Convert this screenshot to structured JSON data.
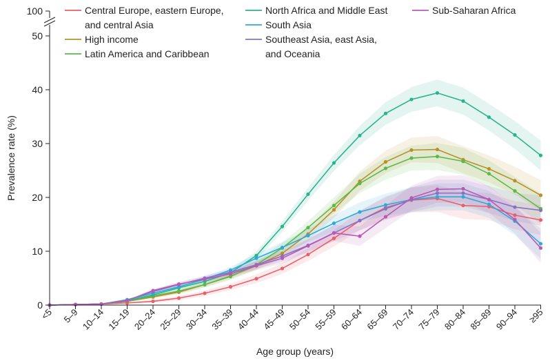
{
  "chart_data": {
    "type": "line",
    "xlabel": "Age group (years)",
    "ylabel": "Prevalence rate (%)",
    "ylim": [
      0,
      50
    ],
    "y_ticks": [
      "0",
      "10",
      "20",
      "30",
      "40",
      "50"
    ],
    "y_break_label": "100",
    "grid": false,
    "legend_position": "top",
    "categories": [
      "<5",
      "5–9",
      "10–14",
      "15–19",
      "20–24",
      "25–29",
      "30–34",
      "35–39",
      "40–44",
      "45–49",
      "50–54",
      "55–59",
      "60–64",
      "65–69",
      "70–74",
      "75–79",
      "80–84",
      "85–89",
      "90–94",
      "≥95"
    ],
    "series": [
      {
        "name": "Central Europe, eastern Europe, and central Asia",
        "color": "#e8606a",
        "values": [
          0,
          0.1,
          0.2,
          0.4,
          0.7,
          1.3,
          2.2,
          3.4,
          4.9,
          6.8,
          9.4,
          12.4,
          15.7,
          18.1,
          19.5,
          19.8,
          18.5,
          18.3,
          16.7,
          15.8
        ]
      },
      {
        "name": "High income",
        "color": "#b8902a",
        "values": [
          0,
          0.1,
          0.2,
          0.7,
          1.5,
          2.4,
          3.8,
          5.4,
          7.3,
          9.6,
          13.2,
          17.7,
          23.0,
          26.6,
          28.8,
          28.9,
          27.0,
          25.3,
          23.1,
          20.4
        ]
      },
      {
        "name": "Latin America and Caribbean",
        "color": "#5cb84a",
        "values": [
          0,
          0.1,
          0.2,
          0.7,
          1.7,
          2.6,
          3.8,
          5.3,
          7.5,
          10.6,
          14.4,
          18.5,
          22.6,
          25.4,
          27.3,
          27.6,
          26.7,
          24.4,
          21.2,
          17.9
        ]
      },
      {
        "name": "North Africa and Middle East",
        "color": "#2bb38f",
        "values": [
          0,
          0.1,
          0.2,
          0.8,
          1.9,
          3.2,
          4.4,
          6.0,
          9.2,
          14.6,
          20.6,
          26.4,
          31.5,
          35.6,
          38.2,
          39.4,
          37.9,
          34.9,
          31.6,
          27.8
        ]
      },
      {
        "name": "South Asia",
        "color": "#2eaad8",
        "values": [
          0,
          0.1,
          0.2,
          1.0,
          2.2,
          3.4,
          4.8,
          6.5,
          8.7,
          10.7,
          12.9,
          15.2,
          17.3,
          18.6,
          19.6,
          20.1,
          20.1,
          18.7,
          15.6,
          11.4
        ]
      },
      {
        "name": "Southeast Asia, east Asia, and Oceania",
        "color": "#8472c4",
        "values": [
          0,
          0.1,
          0.2,
          0.9,
          2.5,
          3.8,
          5.0,
          6.1,
          7.5,
          9.1,
          11.1,
          13.4,
          15.7,
          17.9,
          19.6,
          20.8,
          20.8,
          19.6,
          18.2,
          17.6
        ]
      },
      {
        "name": "Sub-Saharan Africa",
        "color": "#b85ab4",
        "values": [
          0,
          0.1,
          0.2,
          0.8,
          2.7,
          3.9,
          4.8,
          5.8,
          7.3,
          8.7,
          11.0,
          13.4,
          12.8,
          16.4,
          19.9,
          21.5,
          21.6,
          19.6,
          15.9,
          10.6
        ]
      }
    ],
    "uncertainty_halfwidth": [
      0,
      0.05,
      0.08,
      0.15,
      0.3,
      0.4,
      0.5,
      0.6,
      0.8,
      1.0,
      1.2,
      1.5,
      1.8,
      2.1,
      2.3,
      2.5,
      2.5,
      2.5,
      2.6,
      2.8
    ]
  }
}
